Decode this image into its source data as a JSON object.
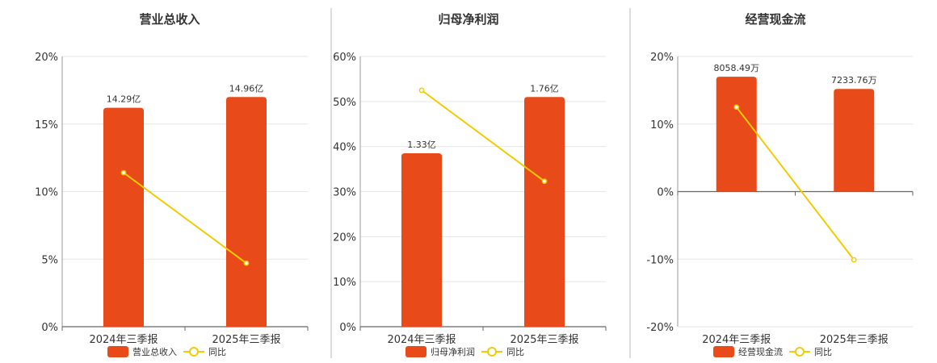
{
  "colors": {
    "bar": "#e84a19",
    "line": "#f2cb05",
    "grid": "#e6e6e6",
    "axis": "#666666",
    "divider": "#bbbbbb"
  },
  "chart_data": [
    {
      "type": "bar",
      "title": "营业总收入",
      "categories": [
        "2024年三季报",
        "2025年三季报"
      ],
      "ylim": [
        0,
        20
      ],
      "ticks": [
        "0%",
        "5%",
        "10%",
        "15%",
        "20%"
      ],
      "tick_values": [
        0,
        5,
        10,
        15,
        20
      ],
      "bar_values": [
        16.2,
        17.0
      ],
      "bar_labels": [
        "14.29亿",
        "14.96亿"
      ],
      "line_values": [
        11.4,
        4.7
      ],
      "legend": [
        "营业总收入",
        "同比"
      ],
      "grid": true
    },
    {
      "type": "bar",
      "title": "归母净利润",
      "categories": [
        "2024年三季报",
        "2025年三季报"
      ],
      "ylim": [
        0,
        60
      ],
      "ticks": [
        "0%",
        "10%",
        "20%",
        "30%",
        "40%",
        "50%",
        "60%"
      ],
      "tick_values": [
        0,
        10,
        20,
        30,
        40,
        50,
        60
      ],
      "bar_values": [
        38.5,
        51.0
      ],
      "bar_labels": [
        "1.33亿",
        "1.76亿"
      ],
      "line_values": [
        52.5,
        32.3
      ],
      "legend": [
        "归母净利润",
        "同比"
      ],
      "grid": true
    },
    {
      "type": "bar",
      "title": "经营现金流",
      "categories": [
        "2024年三季报",
        "2025年三季报"
      ],
      "ylim": [
        -20,
        20
      ],
      "ticks": [
        "-20%",
        "-10%",
        "0%",
        "10%",
        "20%"
      ],
      "tick_values": [
        -20,
        -10,
        0,
        10,
        20
      ],
      "bar_values": [
        17.0,
        15.2
      ],
      "bar_labels": [
        "8058.49万",
        "7233.76万"
      ],
      "line_values": [
        12.5,
        -10.1
      ],
      "legend": [
        "经营现金流",
        "同比"
      ],
      "grid": true
    }
  ]
}
